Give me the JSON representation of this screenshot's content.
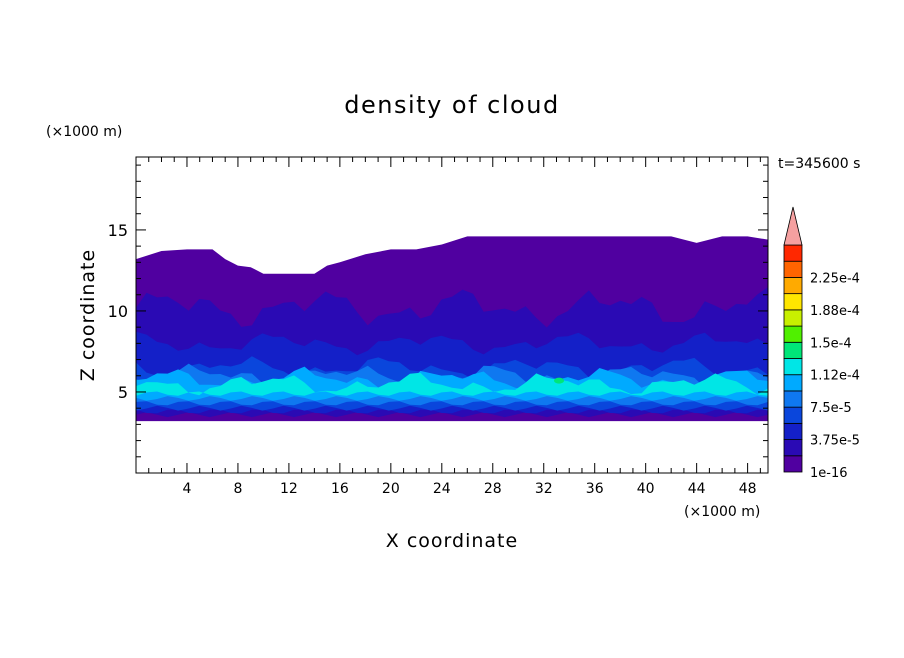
{
  "chart_data": {
    "type": "heatmap",
    "title": "density of cloud",
    "xlabel": "X coordinate",
    "ylabel": "Z coordinate",
    "x_unit": "(×1000 m)",
    "y_unit": "(×1000 m)",
    "time_label": "t=345600 s",
    "xlim": [
      0,
      49.6
    ],
    "ylim": [
      0,
      19.5
    ],
    "x_ticks": [
      4,
      8,
      12,
      16,
      20,
      24,
      28,
      32,
      36,
      40,
      44,
      48
    ],
    "y_ticks": [
      5,
      10,
      15
    ],
    "colorbar": {
      "levels": [
        1e-16,
        1.875e-05,
        3.75e-05,
        5.625e-05,
        7.5e-05,
        9.375e-05,
        0.000112,
        0.00013125,
        0.00015,
        0.00016875,
        0.000188,
        0.00020625,
        0.000225,
        0.00024375
      ],
      "colors": [
        "#5000a0",
        "#2a0ab4",
        "#1420c8",
        "#0a46dc",
        "#0f78f0",
        "#00aaff",
        "#00e6e6",
        "#00e678",
        "#50f000",
        "#c8f000",
        "#ffe600",
        "#ffaa00",
        "#ff6400",
        "#ff2800"
      ],
      "overflow_color": "#f5a0a0",
      "tick_labels": [
        "1e-16",
        "3.75e-5",
        "7.5e-5",
        "1.12e-4",
        "1.5e-4",
        "1.88e-4",
        "2.25e-4"
      ]
    },
    "field": {
      "cloud_top_km": [
        [
          0,
          13.2
        ],
        [
          2,
          13.7
        ],
        [
          4,
          13.8
        ],
        [
          6,
          13.8
        ],
        [
          7,
          13.2
        ],
        [
          8,
          12.8
        ],
        [
          9,
          12.7
        ],
        [
          10,
          12.3
        ],
        [
          12,
          12.3
        ],
        [
          14,
          12.3
        ],
        [
          15,
          12.8
        ],
        [
          16,
          13.0
        ],
        [
          18,
          13.5
        ],
        [
          20,
          13.8
        ],
        [
          22,
          13.8
        ],
        [
          24,
          14.1
        ],
        [
          26,
          14.6
        ],
        [
          30,
          14.6
        ],
        [
          34,
          14.6
        ],
        [
          38,
          14.6
        ],
        [
          40,
          14.6
        ],
        [
          42,
          14.6
        ],
        [
          44,
          14.2
        ],
        [
          46,
          14.6
        ],
        [
          48,
          14.6
        ],
        [
          49.6,
          14.4
        ]
      ],
      "cloud_base_km": 3.2,
      "bands": [
        {
          "level": 1,
          "top": 10.2,
          "bottom": 3.6
        },
        {
          "level": 2,
          "top": 8.0,
          "bottom": 3.8
        },
        {
          "level": 3,
          "top": 6.5,
          "bottom": 4.0
        },
        {
          "level": 4,
          "top": 6.0,
          "bottom": 4.3
        },
        {
          "level": 5,
          "top": 5.8,
          "bottom": 4.6
        },
        {
          "level": 6,
          "top": 5.5,
          "bottom": 4.9
        }
      ],
      "peak": {
        "x": 33.2,
        "z": 5.7,
        "level": 7
      }
    }
  }
}
